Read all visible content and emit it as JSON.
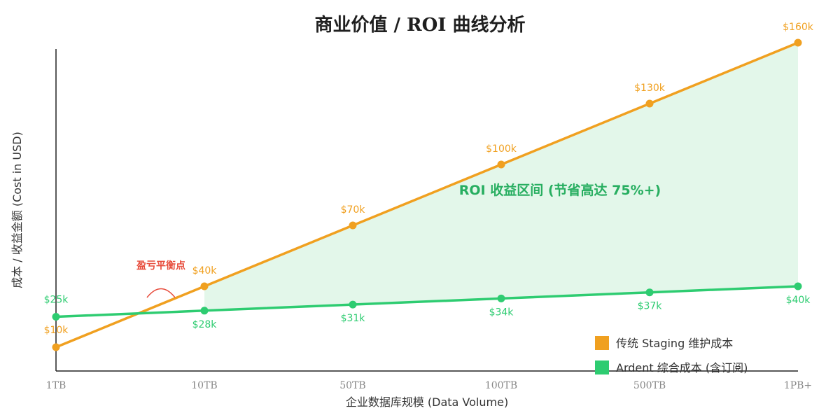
{
  "chart_data": {
    "type": "line",
    "title": "商业价值 / ROI 曲线分析",
    "xlabel": "企业数据库规模 (Data Volume)",
    "ylabel": "成本 / 收益金额 (Cost in USD)",
    "categories": [
      "1TB",
      "10TB",
      "50TB",
      "100TB",
      "500TB",
      "1PB+"
    ],
    "ylim": [
      0,
      168
    ],
    "series": [
      {
        "name": "传统 Staging 维护成本",
        "color": "#f0a020",
        "values": [
          10,
          40,
          70,
          100,
          130,
          160
        ],
        "labels": [
          "$10k",
          "$40k",
          "$70k",
          "$100k",
          "$130k",
          "$160k"
        ]
      },
      {
        "name": "Ardent 综合成本 (含订阅)",
        "color": "#2ecc71",
        "values": [
          25,
          28,
          31,
          34,
          37,
          40
        ],
        "labels": [
          "$25k",
          "$28k",
          "$31k",
          "$34k",
          "$37k",
          "$40k"
        ]
      }
    ],
    "annotations": {
      "roi_zone": "ROI 收益区间 (节省高达 75%+)",
      "break_even": "盈亏平衡点",
      "roi_color": "#27ae60",
      "break_even_color": "#e74c3c",
      "fill_color": "#e3f7ea"
    },
    "legend": "bottom-right",
    "grid": false
  }
}
